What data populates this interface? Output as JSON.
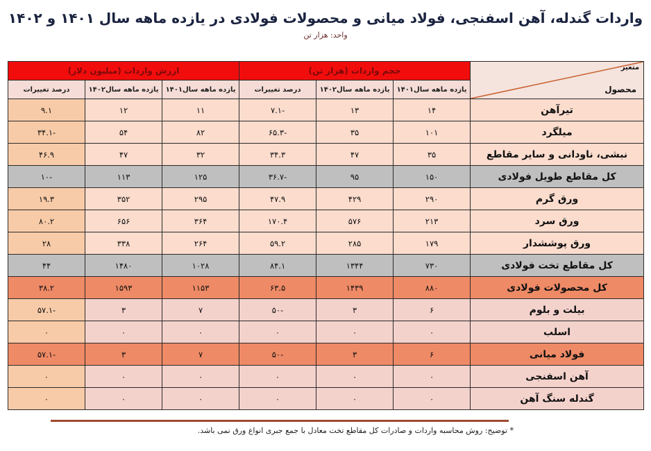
{
  "header": {
    "title": "واردات گندله، آهن اسفنجی، فولاد میانی و محصولات فولادی در یازده ماهه سال ۱۴۰۱ و ۱۴۰۲",
    "unit": "واحد: هزار تن"
  },
  "table": {
    "corner": {
      "top_label": "متغیر",
      "bottom_label": "محصول"
    },
    "groups": {
      "volume": "حجم واردات (هزار تن)",
      "value": "ارزش واردات (میلیون دلار)"
    },
    "subheaders": {
      "y1401": "یازده ماهه سال۱۴۰۱",
      "y1402": "یازده ماهه سال۱۴۰۲",
      "pct": "درصد تغییرات"
    },
    "rows": [
      {
        "product": "تیرآهن",
        "vol_1401": "۱۴",
        "vol_1402": "۱۳",
        "vol_pct": "-۷.۱",
        "val_1401": "۱۱",
        "val_1402": "۱۲",
        "val_pct": "۹.۱",
        "style": "a"
      },
      {
        "product": "میلگرد",
        "vol_1401": "۱۰۱",
        "vol_1402": "۳۵",
        "vol_pct": "-۶۵.۳",
        "val_1401": "۸۲",
        "val_1402": "۵۴",
        "val_pct": "-۳۴.۱",
        "style": "a"
      },
      {
        "product": "نبشی، ناودانی و سایر مقاطع",
        "vol_1401": "۳۵",
        "vol_1402": "۴۷",
        "vol_pct": "۳۴.۳",
        "val_1401": "۳۲",
        "val_1402": "۴۷",
        "val_pct": "۴۶.۹",
        "style": "a"
      },
      {
        "product": "کل مقاطع طویل فولادی",
        "vol_1401": "۱۵۰",
        "vol_1402": "۹۵",
        "vol_pct": "-۳۶.۷",
        "val_1401": "۱۲۵",
        "val_1402": "۱۱۳",
        "val_pct": "-۱۰",
        "style": "gray"
      },
      {
        "product": "ورق گرم",
        "vol_1401": "۲۹۰",
        "vol_1402": "۴۲۹",
        "vol_pct": "۴۷.۹",
        "val_1401": "۲۹۵",
        "val_1402": "۳۵۲",
        "val_pct": "۱۹.۳",
        "style": "a"
      },
      {
        "product": "ورق سرد",
        "vol_1401": "۲۱۳",
        "vol_1402": "۵۷۶",
        "vol_pct": "۱۷۰.۴",
        "val_1401": "۳۶۴",
        "val_1402": "۶۵۶",
        "val_pct": "۸۰.۲",
        "style": "a"
      },
      {
        "product": "ورق پوششدار",
        "vol_1401": "۱۷۹",
        "vol_1402": "۲۸۵",
        "vol_pct": "۵۹.۲",
        "val_1401": "۲۶۴",
        "val_1402": "۳۳۸",
        "val_pct": "۲۸",
        "style": "a"
      },
      {
        "product": "کل مقاطع تخت فولادی",
        "vol_1401": "۷۳۰",
        "vol_1402": "۱۳۴۴",
        "vol_pct": "۸۴.۱",
        "val_1401": "۱۰۲۸",
        "val_1402": "۱۴۸۰",
        "val_pct": "۴۴",
        "style": "gray"
      },
      {
        "product": "کل محصولات فولادی",
        "vol_1401": "۸۸۰",
        "vol_1402": "۱۴۳۹",
        "vol_pct": "۶۳.۵",
        "val_1401": "۱۱۵۳",
        "val_1402": "۱۵۹۳",
        "val_pct": "۳۸.۲",
        "style": "total"
      },
      {
        "product": "بیلت و بلوم",
        "vol_1401": "۶",
        "vol_1402": "۳",
        "vol_pct": "-۵۰",
        "val_1401": "۷",
        "val_1402": "۳",
        "val_pct": "-۵۷.۱",
        "style": "b"
      },
      {
        "product": "اسلب",
        "vol_1401": "۰",
        "vol_1402": "۰",
        "vol_pct": "۰",
        "val_1401": "۰",
        "val_1402": "۰",
        "val_pct": "۰",
        "style": "b"
      },
      {
        "product": "فولاد میانی",
        "vol_1401": "۶",
        "vol_1402": "۳",
        "vol_pct": "-۵۰",
        "val_1401": "۷",
        "val_1402": "۳",
        "val_pct": "-۵۷.۱",
        "style": "total"
      },
      {
        "product": "آهن اسفنجی",
        "vol_1401": "۰",
        "vol_1402": "۰",
        "vol_pct": "۰",
        "val_1401": "۰",
        "val_1402": "۰",
        "val_pct": "۰",
        "style": "b"
      },
      {
        "product": "گندله سنگ آهن",
        "vol_1401": "۰",
        "vol_1402": "۰",
        "vol_pct": "۰",
        "val_1401": "۰",
        "val_1402": "۰",
        "val_pct": "۰",
        "style": "b"
      }
    ]
  },
  "footer": {
    "note": "* توضیح: روش محاسبه واردات و صادرات کل مقاطع تخت معادل با جمع جبری انواع ورق نمی باشد."
  },
  "colors": {
    "group_header_bg": "#f20d0d",
    "row_light": "#fbdccd",
    "row_subtotal": "#bfbfbf",
    "row_total": "#ee8a66",
    "row_pink": "#f4d2cc",
    "pct_column": "#f8cba8"
  }
}
